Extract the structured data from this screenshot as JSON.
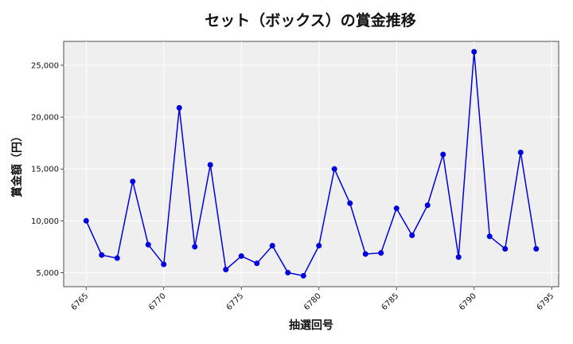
{
  "chart_data": {
    "type": "line",
    "title": "セット（ボックス）の賞金推移",
    "xlabel": "抽選回号",
    "ylabel": "賞金額（円）",
    "xlim": [
      6763.55,
      6795.45
    ],
    "ylim": [
      3650,
      27300
    ],
    "xticks": [
      6765,
      6770,
      6775,
      6780,
      6785,
      6790,
      6795
    ],
    "yticks": [
      5000,
      10000,
      15000,
      20000,
      25000
    ],
    "ytick_labels": [
      "5,000",
      "10,000",
      "15,000",
      "20,000",
      "25,000"
    ],
    "grid": true,
    "colors": {
      "line": "#0000dd",
      "plot_background": "#efefef",
      "grid": "#ffffff"
    },
    "series": [
      {
        "x": [
          6765,
          6766,
          6767,
          6768,
          6769,
          6770,
          6771,
          6772,
          6773,
          6774,
          6775,
          6776,
          6777,
          6778,
          6779,
          6780,
          6781,
          6782,
          6783,
          6784,
          6785,
          6786,
          6787,
          6788,
          6789,
          6790,
          6791,
          6792,
          6793,
          6794
        ],
        "values": [
          10000,
          6700,
          6400,
          13800,
          7700,
          5800,
          20900,
          7500,
          15400,
          5300,
          6600,
          5900,
          7600,
          5000,
          4700,
          7600,
          15000,
          11700,
          6800,
          6900,
          11200,
          8600,
          11500,
          16400,
          6500,
          26300,
          8500,
          7300,
          16600,
          7300
        ]
      }
    ]
  }
}
